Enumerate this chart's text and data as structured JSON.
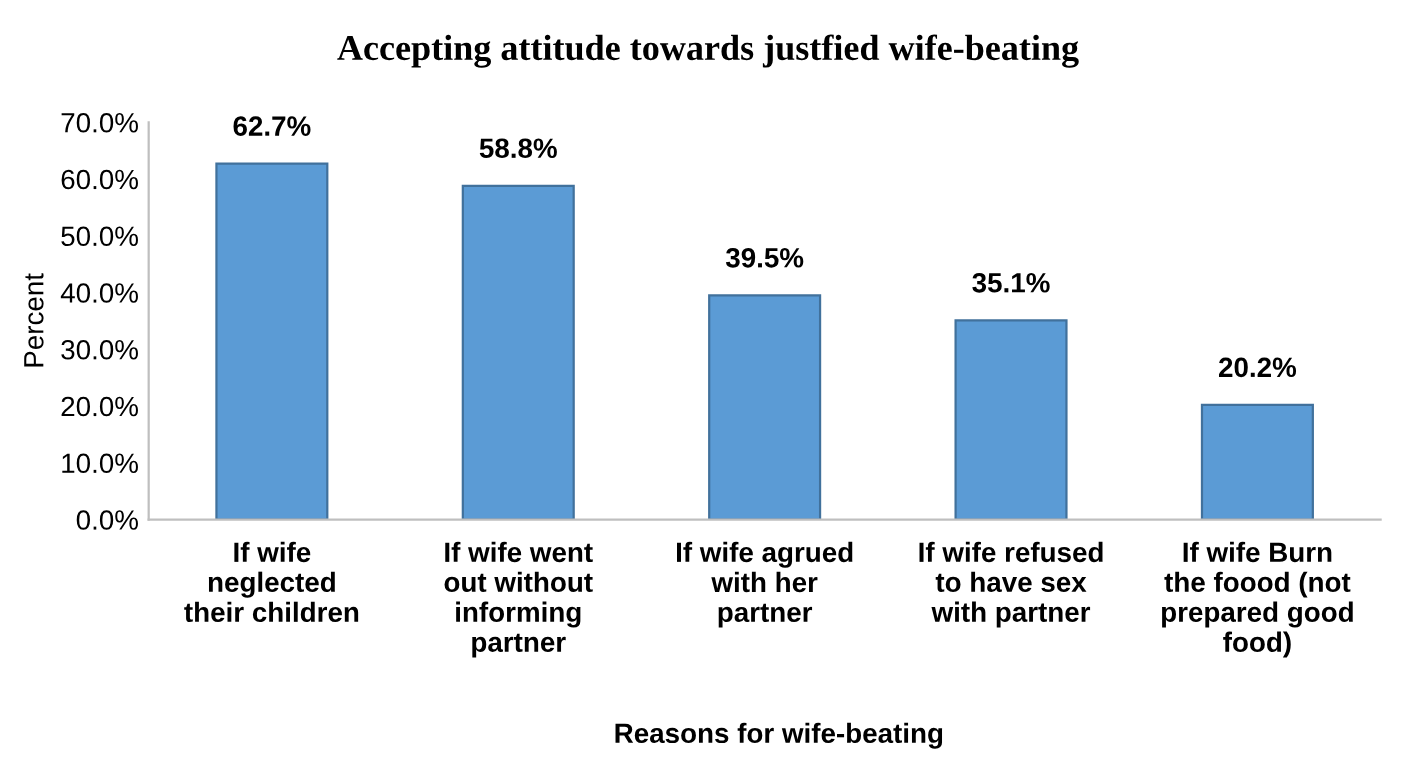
{
  "chart_data": {
    "type": "bar",
    "title": "Accepting attitude towards justfied wife-beating",
    "xlabel": "Reasons for wife-beating",
    "ylabel": "Percent",
    "categories": [
      "If wife\nneglected\ntheir children",
      "If wife went\nout without\ninforming\npartner",
      "If wife agrued\nwith her\npartner",
      "If wife refused\nto have sex\nwith partner",
      "If wife Burn\nthe foood (not\nprepared good\nfood)"
    ],
    "values": [
      62.7,
      58.8,
      39.5,
      35.1,
      20.2
    ],
    "value_labels": [
      "62.7%",
      "58.8%",
      "39.5%",
      "35.1%",
      "20.2%"
    ],
    "color": "#5b9bd5",
    "ylim": [
      0,
      70
    ],
    "yticks": [
      {
        "value": 0,
        "label": "0.0%"
      },
      {
        "value": 10,
        "label": "10.0%"
      },
      {
        "value": 20,
        "label": "20.0%"
      },
      {
        "value": 30,
        "label": "30.0%"
      },
      {
        "value": 40,
        "label": "40.0%"
      },
      {
        "value": 50,
        "label": "50.0%"
      },
      {
        "value": 60,
        "label": "60.0%"
      },
      {
        "value": 70,
        "label": "70.0%"
      }
    ],
    "grid": false
  }
}
